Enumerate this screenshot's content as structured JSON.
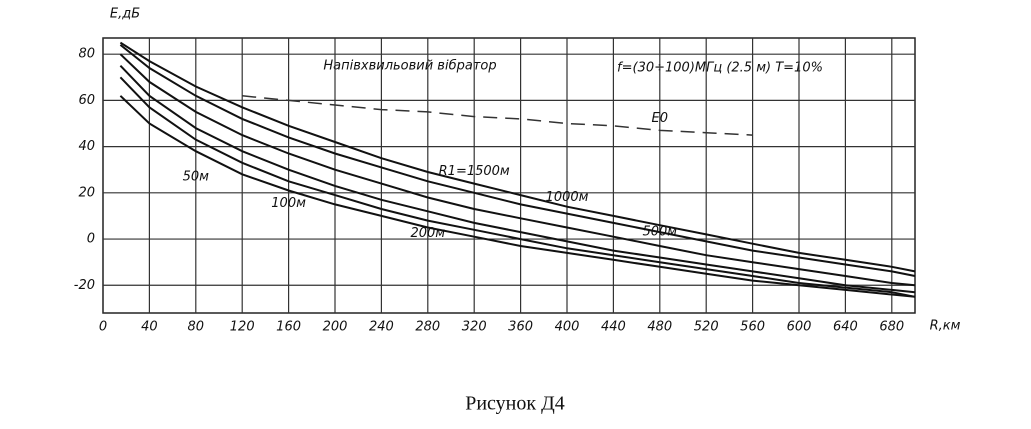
{
  "chart_data": {
    "type": "line",
    "title": "Напівхвильовий вібратор",
    "subtitle": "f=(30÷100)МГц (2.5 м) T=10%",
    "y_label": "E,дБ",
    "x_label": "R,км",
    "x": [
      15,
      40,
      80,
      120,
      160,
      200,
      240,
      280,
      320,
      360,
      400,
      440,
      480,
      520,
      560,
      600,
      640,
      680,
      700
    ],
    "series": [
      {
        "name": "R1=1500м",
        "color": "#111111",
        "style": "solid",
        "values": [
          85,
          77,
          66,
          57,
          49,
          42,
          35,
          29,
          24,
          19,
          14,
          10,
          6,
          2,
          -2,
          -6,
          -9,
          -12,
          -14
        ]
      },
      {
        "name": "1000м",
        "color": "#111111",
        "style": "solid",
        "values": [
          84,
          74,
          62,
          52,
          44,
          37,
          31,
          25,
          20,
          15,
          11,
          7,
          3,
          -1,
          -5,
          -8,
          -11,
          -14,
          -16
        ]
      },
      {
        "name": "500м",
        "color": "#111111",
        "style": "solid",
        "values": [
          80,
          68,
          55,
          45,
          37,
          30,
          24,
          18,
          13,
          9,
          5,
          1,
          -3,
          -7,
          -10,
          -13,
          -16,
          -19,
          -20
        ]
      },
      {
        "name": "200м",
        "color": "#111111",
        "style": "solid",
        "values": [
          75,
          62,
          48,
          38,
          30,
          23,
          17,
          12,
          7,
          3,
          -1,
          -5,
          -8,
          -11,
          -14,
          -17,
          -20,
          -22,
          -23
        ]
      },
      {
        "name": "100м",
        "color": "#111111",
        "style": "solid",
        "values": [
          70,
          57,
          43,
          33,
          25,
          19,
          13,
          8,
          4,
          0,
          -4,
          -7,
          -10,
          -13,
          -16,
          -19,
          -21,
          -23,
          -25
        ]
      },
      {
        "name": "50м",
        "color": "#111111",
        "style": "solid",
        "values": [
          62,
          50,
          38,
          28,
          21,
          15,
          10,
          5,
          1,
          -3,
          -6,
          -9,
          -12,
          -15,
          -18,
          -20,
          -22,
          -24,
          -25
        ]
      },
      {
        "name": "E0",
        "color": "#333333",
        "style": "dashed",
        "values": [
          null,
          null,
          null,
          62,
          60,
          58,
          56,
          55,
          53,
          52,
          50,
          49,
          47,
          46,
          45,
          null,
          null,
          null,
          null
        ]
      }
    ],
    "xlim": [
      0,
      700
    ],
    "ylim": [
      -32,
      87
    ],
    "xticks": [
      0,
      40,
      80,
      120,
      160,
      200,
      240,
      280,
      320,
      360,
      400,
      440,
      480,
      520,
      560,
      600,
      640,
      680
    ],
    "yticks": [
      -20,
      0,
      20,
      40,
      60,
      80
    ],
    "grid": true
  },
  "figure_caption": "Рисунок Д4"
}
